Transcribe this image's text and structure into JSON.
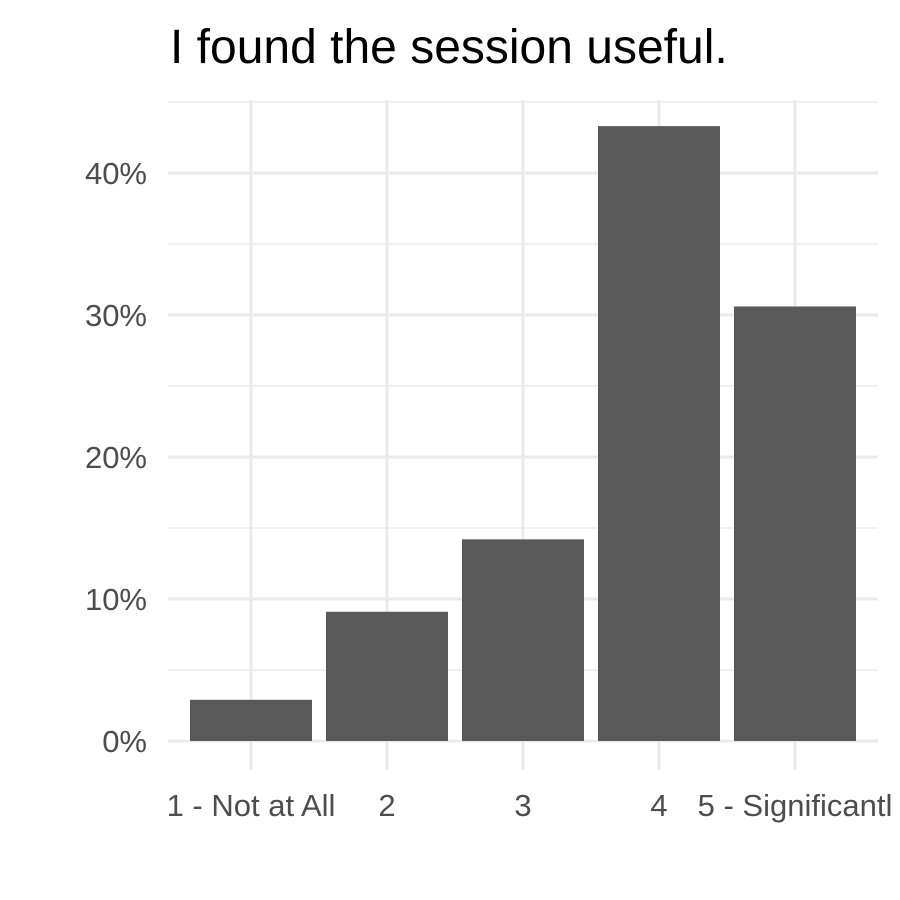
{
  "chart_data": {
    "type": "bar",
    "title": "I found the session useful.",
    "xlabel": "",
    "ylabel": "",
    "categories": [
      "1 - Not at All",
      "2",
      "3",
      "4",
      "5 - Significantl"
    ],
    "values": [
      2.9,
      9.1,
      14.2,
      43.3,
      30.6
    ],
    "value_unit": "%",
    "ylim": [
      0,
      46
    ],
    "y_ticks": [
      0,
      10,
      20,
      30,
      40
    ],
    "y_tick_labels": [
      "0%",
      "10%",
      "20%",
      "30%",
      "40%"
    ],
    "grid": true,
    "legend": "none",
    "colors": {
      "bar": "#595959",
      "grid": "#ebebeb",
      "tick_text": "#4d4d4d",
      "title": "#000000",
      "background": "#ffffff"
    }
  }
}
